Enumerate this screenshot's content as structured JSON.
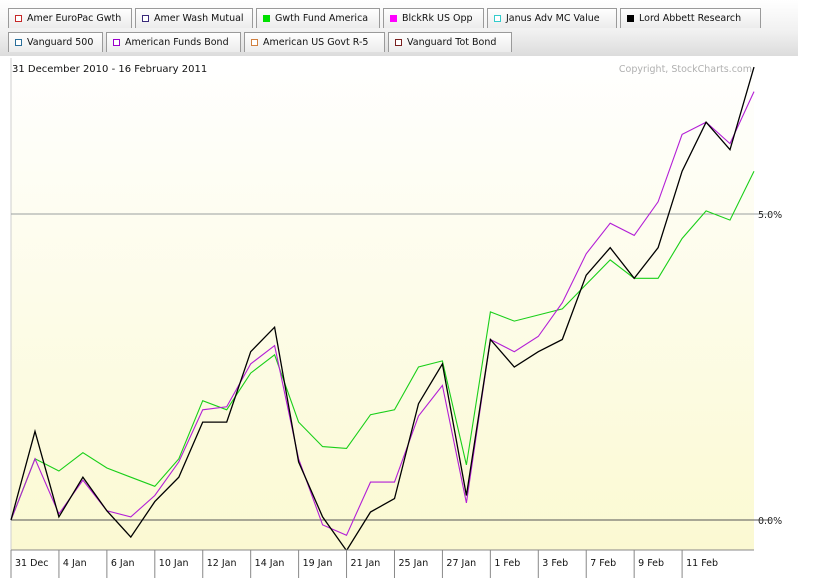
{
  "legend": [
    {
      "label": "Amer EuroPac Gwth",
      "color": "#c62828",
      "filled": false
    },
    {
      "label": "Amer Wash Mutual",
      "color": "#3a2a7a",
      "filled": false
    },
    {
      "label": "Gwth Fund America",
      "color": "#00e000",
      "filled": true
    },
    {
      "label": "BlckRk US Opp",
      "color": "#ff00ff",
      "filled": true
    },
    {
      "label": "Janus Adv MC Value",
      "color": "#33cccc",
      "filled": false
    },
    {
      "label": "Lord Abbett Research",
      "color": "#000000",
      "filled": true
    },
    {
      "label": "Vanguard 500",
      "color": "#2a6f9a",
      "filled": false
    },
    {
      "label": "American Funds Bond",
      "color": "#9a00cc",
      "filled": false
    },
    {
      "label": "American US Govt R-5",
      "color": "#d08040",
      "filled": false
    },
    {
      "label": "Vanguard Tot Bond",
      "color": "#7a2020",
      "filled": false
    }
  ],
  "date_range": "31 December 2010 - 16 February 2011",
  "copyright": "Copyright, StockCharts.com",
  "chart_data": {
    "type": "line",
    "x": [
      "31 Dec",
      "3 Jan",
      "4 Jan",
      "5 Jan",
      "6 Jan",
      "7 Jan",
      "10 Jan",
      "11 Jan",
      "12 Jan",
      "13 Jan",
      "14 Jan",
      "18 Jan",
      "19 Jan",
      "20 Jan",
      "21 Jan",
      "24 Jan",
      "25 Jan",
      "26 Jan",
      "27 Jan",
      "28 Jan",
      "1 Feb",
      "2 Feb",
      "3 Feb",
      "4 Feb",
      "7 Feb",
      "8 Feb",
      "9 Feb",
      "10 Feb",
      "11 Feb",
      "14 Feb",
      "15 Feb",
      "16 Feb"
    ],
    "x_tick_labels": [
      "31 Dec",
      "4 Jan",
      "6 Jan",
      "10 Jan",
      "12 Jan",
      "14 Jan",
      "19 Jan",
      "21 Jan",
      "25 Jan",
      "27 Jan",
      "1 Feb",
      "3 Feb",
      "7 Feb",
      "9 Feb",
      "11 Feb"
    ],
    "y_ticks": [
      {
        "value": 0,
        "label": "0.0%"
      },
      {
        "value": 5,
        "label": "5.0%"
      }
    ],
    "ylim": [
      -0.5,
      7.4
    ],
    "series": [
      {
        "name": "Gwth Fund America",
        "color": "#19cf19",
        "values": [
          0.0,
          1.0,
          0.8,
          1.1,
          0.85,
          0.7,
          0.55,
          1.0,
          1.95,
          1.8,
          2.4,
          2.7,
          1.6,
          1.2,
          1.17,
          1.72,
          1.8,
          2.5,
          2.6,
          0.9,
          3.4,
          3.25,
          3.35,
          3.45,
          3.85,
          4.25,
          3.95,
          3.95,
          4.6,
          5.05,
          4.9,
          5.7
        ]
      },
      {
        "name": "BlckRk US Opp",
        "color": "#b31fd6",
        "values": [
          0.0,
          1.0,
          0.1,
          0.65,
          0.15,
          0.05,
          0.4,
          0.95,
          1.8,
          1.85,
          2.55,
          2.85,
          1.0,
          -0.08,
          -0.25,
          0.62,
          0.62,
          1.7,
          2.2,
          0.28,
          2.95,
          2.75,
          3.0,
          3.55,
          4.35,
          4.85,
          4.65,
          5.2,
          6.3,
          6.5,
          6.15,
          7.0
        ]
      },
      {
        "name": "Lord Abbett Research",
        "color": "#000000",
        "values": [
          0.0,
          1.45,
          0.05,
          0.7,
          0.15,
          -0.28,
          0.3,
          0.7,
          1.6,
          1.6,
          2.75,
          3.15,
          0.95,
          0.05,
          -0.5,
          0.13,
          0.35,
          1.9,
          2.55,
          0.4,
          2.95,
          2.5,
          2.75,
          2.95,
          4.0,
          4.45,
          3.95,
          4.45,
          5.7,
          6.5,
          6.05,
          7.4
        ]
      }
    ]
  }
}
